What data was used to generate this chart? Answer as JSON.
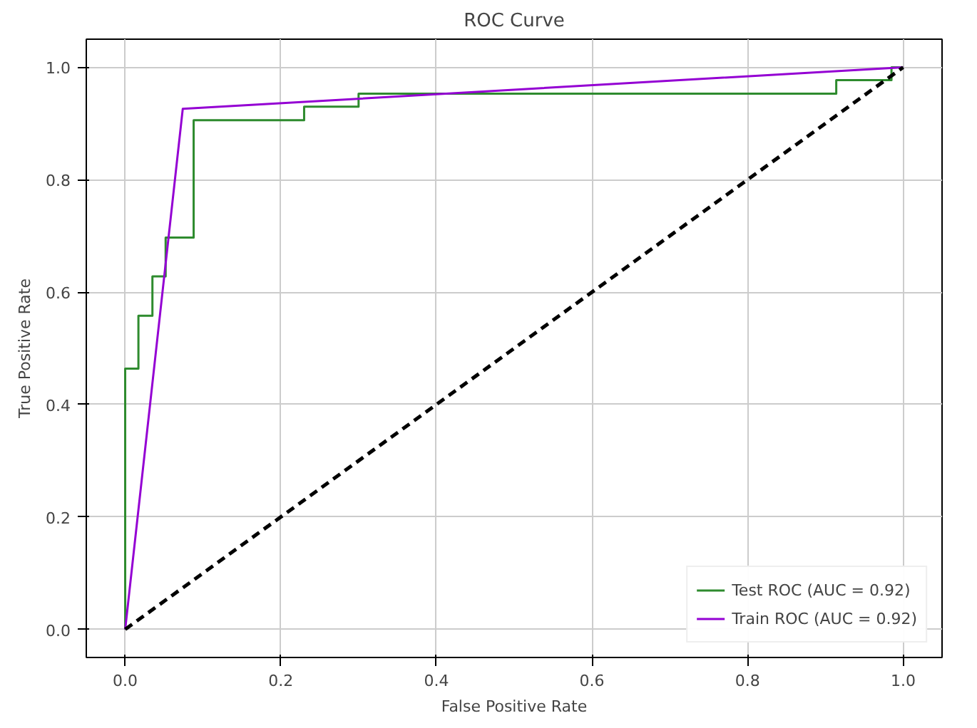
{
  "chart_data": {
    "type": "line",
    "title": "ROC Curve",
    "xlabel": "False Positive Rate",
    "ylabel": "True Positive Rate",
    "xlim": [
      -0.05,
      1.05
    ],
    "ylim": [
      -0.05,
      1.05
    ],
    "xticks": [
      {
        "value": 0,
        "label": "0.0"
      },
      0.2,
      0.4,
      0.6,
      0.8,
      {
        "value": 1,
        "label": "1.0"
      }
    ],
    "yticks": [
      {
        "value": 0,
        "label": "0.0"
      },
      0.2,
      0.4,
      0.6,
      0.8,
      {
        "value": 1,
        "label": "1.0"
      }
    ],
    "grid": true,
    "legend": "bottom right",
    "marker": "none",
    "series": [
      {
        "name": "Test ROC (AUC = 0.92)",
        "color": "#2e8b2e",
        "line_style": "solid",
        "x": [
          0,
          0,
          0.017,
          0.017,
          0.035,
          0.035,
          0.052,
          0.052,
          0.088,
          0.088,
          0.23,
          0.23,
          0.3,
          0.3,
          0.914,
          0.914,
          0.985,
          0.985,
          1
        ],
        "values": [
          0,
          0.464,
          0.464,
          0.558,
          0.558,
          0.628,
          0.628,
          0.697,
          0.697,
          0.906,
          0.906,
          0.93,
          0.93,
          0.953,
          0.953,
          0.977,
          0.977,
          1,
          1
        ]
      },
      {
        "name": "Train ROC (AUC = 0.92)",
        "color": "#9400d3",
        "line_style": "solid",
        "x": [
          0,
          0.074,
          1
        ],
        "values": [
          0,
          0.926,
          1
        ]
      },
      {
        "color": "#000000",
        "line_style": "dashed",
        "x": [
          0,
          1
        ],
        "values": [
          0,
          1
        ]
      }
    ]
  }
}
